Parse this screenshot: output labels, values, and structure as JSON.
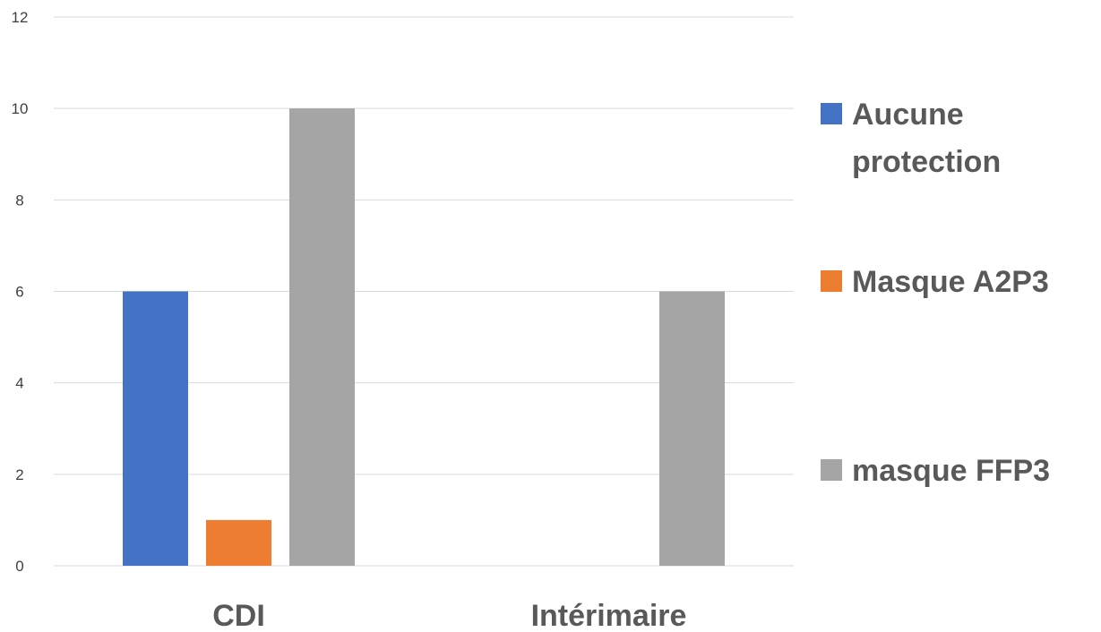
{
  "chart_data": {
    "type": "bar",
    "categories": [
      "CDI",
      "Intérimaire"
    ],
    "series": [
      {
        "name": "Aucune protection",
        "values": [
          6,
          0
        ],
        "color": "#4472C4"
      },
      {
        "name": "Masque A2P3",
        "values": [
          1,
          0
        ],
        "color": "#ED7D31"
      },
      {
        "name": "masque FFP3",
        "values": [
          10,
          6
        ],
        "color": "#A5A5A5"
      }
    ],
    "ylim": [
      0,
      12
    ],
    "yticks": [
      "0",
      "2",
      "4",
      "6",
      "8",
      "10",
      "12"
    ],
    "grid": true,
    "legend_position": "right",
    "legend_labels": [
      [
        "Aucune",
        "protection"
      ],
      [
        "Masque A2P3"
      ],
      [
        "masque FFP3"
      ]
    ],
    "colors": {
      "grid": "#D9D9D9",
      "tick_text": "#404040",
      "category_text": "#595959",
      "legend_text": "#595959"
    }
  }
}
